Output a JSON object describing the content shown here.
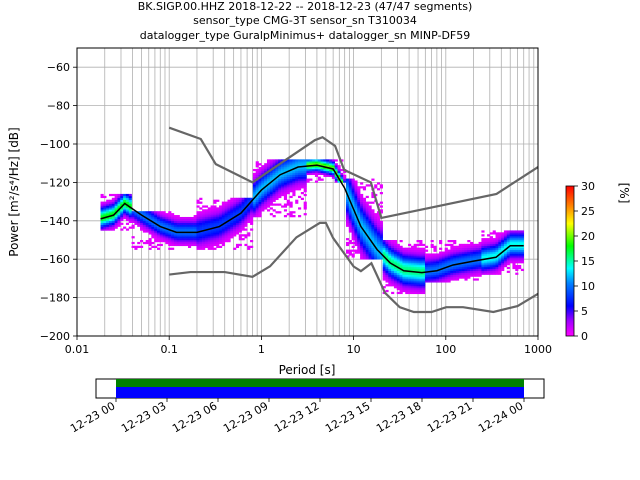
{
  "chart_data": {
    "type": "heatmap",
    "title_lines": [
      "BK.SIGP.00.HHZ   2018-12-22 -- 2018-12-23  (47/47 segments)",
      "sensor_type CMG-3T sensor_sn T310034",
      "datalogger_type GuralpMinimus+ datalogger_sn MINP-DF59"
    ],
    "xlabel": "Period [s]",
    "ylabel": "Power [m²/s⁴/Hz] [dB]",
    "x_scale": "log",
    "xlim": [
      0.01,
      1000
    ],
    "ylim": [
      -200,
      -50
    ],
    "x_ticks": [
      0.01,
      0.1,
      1,
      10,
      100,
      1000
    ],
    "x_tick_labels": [
      "0.01",
      "0.1",
      "1",
      "10",
      "100",
      "1000"
    ],
    "y_ticks": [
      -200,
      -180,
      -160,
      -140,
      -120,
      -100,
      -80,
      -60
    ],
    "y_tick_labels": [
      "−200",
      "−180",
      "−160",
      "−140",
      "−120",
      "−100",
      "−80",
      "−60"
    ],
    "grid": true,
    "colorbar": {
      "label": "[%]",
      "range": [
        0,
        30
      ],
      "ticks": [
        0,
        5,
        10,
        15,
        20,
        25,
        30
      ],
      "tick_labels": [
        "0",
        "5",
        "10",
        "15",
        "20",
        "25",
        "30"
      ]
    },
    "noise_models": {
      "NHNM": {
        "period": [
          0.1,
          0.22,
          0.32,
          0.8,
          3.8,
          4.6,
          6.3,
          7.9,
          15.4,
          20,
          354.8,
          1000
        ],
        "power": [
          -91.5,
          -97.4,
          -110.5,
          -120,
          -98,
          -96.5,
          -101,
          -113.5,
          -120,
          -138.5,
          -126,
          -112
        ]
      },
      "NLNM": {
        "period": [
          0.1,
          0.17,
          0.4,
          0.8,
          1.24,
          2.4,
          4.3,
          5,
          6,
          10,
          12,
          15.6,
          21.9,
          31.6,
          45,
          70,
          101,
          154,
          328,
          600,
          1000
        ],
        "power": [
          -168,
          -166.7,
          -166.7,
          -169.2,
          -163.7,
          -148.6,
          -141.1,
          -141.1,
          -149,
          -163.8,
          -166.2,
          -162.1,
          -177.5,
          -185,
          -187.5,
          -187.5,
          -185,
          -185,
          -187.5,
          -184.4,
          -178
        ]
      }
    },
    "mean_curve": {
      "period": [
        0.018,
        0.025,
        0.033,
        0.05,
        0.08,
        0.12,
        0.2,
        0.35,
        0.6,
        1,
        1.6,
        2.5,
        4,
        6,
        8,
        12,
        18,
        25,
        35,
        55,
        80,
        120,
        200,
        350,
        500,
        700
      ],
      "power": [
        -139,
        -137,
        -131,
        -137,
        -143,
        -146,
        -146,
        -143,
        -136,
        -124,
        -116,
        -112,
        -111,
        -113,
        -123,
        -143,
        -155,
        -162,
        -166,
        -167,
        -166,
        -163,
        -161,
        -159,
        -153,
        -153
      ]
    },
    "ppsd_percentage_bands": [
      {
        "period_range": [
          0.018,
          0.04
        ],
        "power_range": [
          -145,
          -126
        ],
        "percent": 18
      },
      {
        "period_range": [
          0.04,
          0.2
        ],
        "power_range": [
          -155,
          -135
        ],
        "percent": 10
      },
      {
        "period_range": [
          0.2,
          0.8
        ],
        "power_range": [
          -155,
          -128
        ],
        "percent": 8
      },
      {
        "period_range": [
          0.8,
          3
        ],
        "power_range": [
          -138,
          -108
        ],
        "percent": 12
      },
      {
        "period_range": [
          3,
          8
        ],
        "power_range": [
          -120,
          -108
        ],
        "percent": 20
      },
      {
        "period_range": [
          8,
          20
        ],
        "power_range": [
          -160,
          -118
        ],
        "percent": 12
      },
      {
        "period_range": [
          20,
          60
        ],
        "power_range": [
          -178,
          -150
        ],
        "percent": 16
      },
      {
        "period_range": [
          60,
          250
        ],
        "power_range": [
          -172,
          -150
        ],
        "percent": 10
      },
      {
        "period_range": [
          250,
          700
        ],
        "power_range": [
          -168,
          -145
        ],
        "percent": 14
      }
    ],
    "coverage": {
      "tick_labels": [
        "12-23 00",
        "12-23 03",
        "12-23 06",
        "12-23 09",
        "12-23 12",
        "12-23 15",
        "12-23 18",
        "12-23 21",
        "12-24 00"
      ],
      "data_range": [
        "12-23 00",
        "12-24 00"
      ]
    }
  }
}
